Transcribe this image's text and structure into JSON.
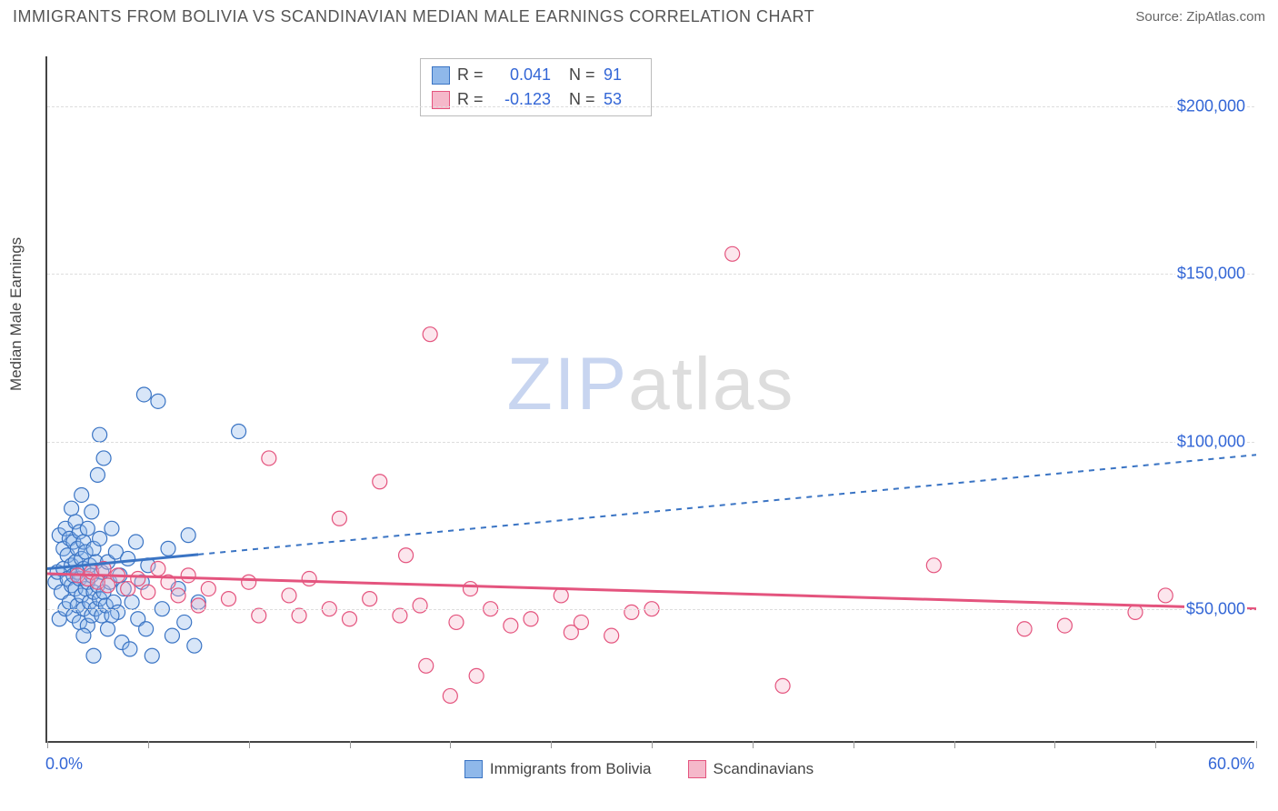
{
  "title": "IMMIGRANTS FROM BOLIVIA VS SCANDINAVIAN MEDIAN MALE EARNINGS CORRELATION CHART",
  "source_label": "Source:",
  "source_name": "ZipAtlas.com",
  "watermark_a": "ZIP",
  "watermark_b": "atlas",
  "ylabel": "Median Male Earnings",
  "chart": {
    "type": "scatter",
    "xlim": [
      0,
      60
    ],
    "ylim": [
      10000,
      215000
    ],
    "x_tick_positions": [
      0,
      5,
      10,
      15,
      20,
      25,
      30,
      35,
      40,
      45,
      50,
      55,
      60
    ],
    "x_axis_left_label": "0.0%",
    "x_axis_right_label": "60.0%",
    "y_gridlines": [
      50000,
      100000,
      150000,
      200000
    ],
    "y_tick_labels": [
      "$50,000",
      "$100,000",
      "$150,000",
      "$200,000"
    ],
    "background_color": "#ffffff",
    "grid_color": "#dddddd",
    "marker_radius": 8,
    "series": [
      {
        "name": "Immigrants from Bolivia",
        "color_fill": "#8fb8ea",
        "color_stroke": "#3a74c4",
        "r_value": "0.041",
        "n_value": "91",
        "trend": {
          "x0": 0,
          "y0": 62000,
          "x1": 60,
          "y1": 96000,
          "solid_until_x": 7.5,
          "dash": "6 6"
        },
        "points": [
          [
            0.4,
            58000
          ],
          [
            0.5,
            61000
          ],
          [
            0.6,
            47000
          ],
          [
            0.6,
            72000
          ],
          [
            0.7,
            55000
          ],
          [
            0.8,
            62000
          ],
          [
            0.8,
            68000
          ],
          [
            0.9,
            50000
          ],
          [
            0.9,
            74000
          ],
          [
            1.0,
            59000
          ],
          [
            1.0,
            66000
          ],
          [
            1.1,
            52000
          ],
          [
            1.1,
            71000
          ],
          [
            1.2,
            57000
          ],
          [
            1.2,
            63000
          ],
          [
            1.2,
            80000
          ],
          [
            1.3,
            48000
          ],
          [
            1.3,
            60000
          ],
          [
            1.3,
            70000
          ],
          [
            1.4,
            56000
          ],
          [
            1.4,
            64000
          ],
          [
            1.4,
            76000
          ],
          [
            1.5,
            51000
          ],
          [
            1.5,
            61000
          ],
          [
            1.5,
            68000
          ],
          [
            1.6,
            46000
          ],
          [
            1.6,
            59000
          ],
          [
            1.6,
            73000
          ],
          [
            1.7,
            54000
          ],
          [
            1.7,
            65000
          ],
          [
            1.7,
            84000
          ],
          [
            1.8,
            50000
          ],
          [
            1.8,
            62000
          ],
          [
            1.8,
            70000
          ],
          [
            1.9,
            56000
          ],
          [
            1.9,
            67000
          ],
          [
            2.0,
            45000
          ],
          [
            2.0,
            58000
          ],
          [
            2.0,
            74000
          ],
          [
            2.1,
            52000
          ],
          [
            2.1,
            63000
          ],
          [
            2.2,
            48000
          ],
          [
            2.2,
            60000
          ],
          [
            2.2,
            79000
          ],
          [
            2.3,
            55000
          ],
          [
            2.3,
            68000
          ],
          [
            2.4,
            50000
          ],
          [
            2.4,
            64000
          ],
          [
            2.5,
            57000
          ],
          [
            2.5,
            90000
          ],
          [
            2.6,
            53000
          ],
          [
            2.6,
            71000
          ],
          [
            2.7,
            48000
          ],
          [
            2.7,
            61000
          ],
          [
            2.8,
            55000
          ],
          [
            2.8,
            95000
          ],
          [
            2.9,
            51000
          ],
          [
            3.0,
            64000
          ],
          [
            3.0,
            44000
          ],
          [
            3.1,
            58000
          ],
          [
            3.2,
            74000
          ],
          [
            3.3,
            52000
          ],
          [
            3.4,
            67000
          ],
          [
            3.5,
            49000
          ],
          [
            3.6,
            60000
          ],
          [
            3.7,
            40000
          ],
          [
            3.8,
            56000
          ],
          [
            4.0,
            65000
          ],
          [
            4.1,
            38000
          ],
          [
            4.2,
            52000
          ],
          [
            4.4,
            70000
          ],
          [
            4.5,
            47000
          ],
          [
            4.7,
            58000
          ],
          [
            4.9,
            44000
          ],
          [
            5.0,
            63000
          ],
          [
            5.2,
            36000
          ],
          [
            5.5,
            112000
          ],
          [
            5.7,
            50000
          ],
          [
            6.0,
            68000
          ],
          [
            6.2,
            42000
          ],
          [
            6.5,
            56000
          ],
          [
            6.8,
            46000
          ],
          [
            7.0,
            72000
          ],
          [
            7.3,
            39000
          ],
          [
            7.5,
            52000
          ],
          [
            4.8,
            114000
          ],
          [
            2.6,
            102000
          ],
          [
            3.2,
            48000
          ],
          [
            1.8,
            42000
          ],
          [
            2.3,
            36000
          ],
          [
            9.5,
            103000
          ]
        ]
      },
      {
        "name": "Scandinavians",
        "color_fill": "#f5b8ca",
        "color_stroke": "#e4547e",
        "r_value": "-0.123",
        "n_value": "53",
        "trend": {
          "x0": 0,
          "y0": 60500,
          "x1": 60,
          "y1": 50000,
          "solid_until_x": 60,
          "dash": "none"
        },
        "points": [
          [
            1.5,
            60000
          ],
          [
            2.0,
            59000
          ],
          [
            2.2,
            61000
          ],
          [
            2.5,
            58000
          ],
          [
            2.8,
            62000
          ],
          [
            3.0,
            57000
          ],
          [
            3.5,
            60000
          ],
          [
            4.0,
            56000
          ],
          [
            4.5,
            59000
          ],
          [
            5.0,
            55000
          ],
          [
            5.5,
            62000
          ],
          [
            6.0,
            58000
          ],
          [
            6.5,
            54000
          ],
          [
            7.0,
            60000
          ],
          [
            7.5,
            51000
          ],
          [
            8.0,
            56000
          ],
          [
            9.0,
            53000
          ],
          [
            10.0,
            58000
          ],
          [
            10.5,
            48000
          ],
          [
            11.0,
            95000
          ],
          [
            12.0,
            54000
          ],
          [
            12.5,
            48000
          ],
          [
            13.0,
            59000
          ],
          [
            14.0,
            50000
          ],
          [
            14.5,
            77000
          ],
          [
            15.0,
            47000
          ],
          [
            16.0,
            53000
          ],
          [
            16.5,
            88000
          ],
          [
            17.5,
            48000
          ],
          [
            17.8,
            66000
          ],
          [
            18.5,
            51000
          ],
          [
            18.8,
            33000
          ],
          [
            19.0,
            132000
          ],
          [
            20.0,
            24000
          ],
          [
            20.3,
            46000
          ],
          [
            21.0,
            56000
          ],
          [
            21.3,
            30000
          ],
          [
            22.0,
            50000
          ],
          [
            23.0,
            45000
          ],
          [
            24.0,
            47000
          ],
          [
            25.5,
            54000
          ],
          [
            26.0,
            43000
          ],
          [
            26.5,
            46000
          ],
          [
            28.0,
            42000
          ],
          [
            29.0,
            49000
          ],
          [
            30.0,
            50000
          ],
          [
            34.0,
            156000
          ],
          [
            36.5,
            27000
          ],
          [
            44.0,
            63000
          ],
          [
            48.5,
            44000
          ],
          [
            50.5,
            45000
          ],
          [
            55.5,
            54000
          ],
          [
            54.0,
            49000
          ]
        ]
      }
    ]
  }
}
